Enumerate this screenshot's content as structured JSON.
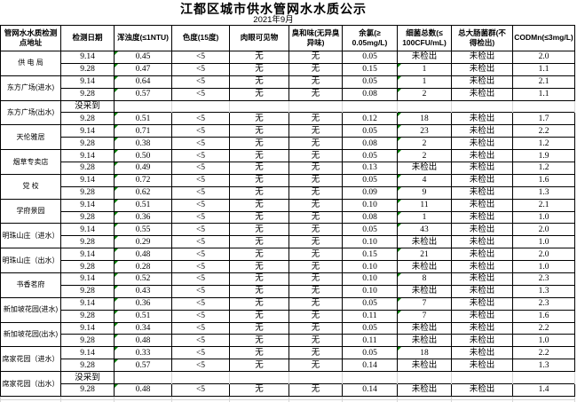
{
  "title": "江都区城市供水管网水水质公示",
  "subtitle": "2021年9月",
  "colors": {
    "border": "#000000",
    "gridline": "#d6d6d6",
    "triangle": "#008000",
    "background": "#ffffff",
    "text": "#000000"
  },
  "table": {
    "headers": [
      "管网水水质检测\n点地址",
      "检测日期",
      "浑浊度(≤1NTU)",
      "色度(15度)",
      "肉眼可见物",
      "臭和味(无异臭\n异味)",
      "余氯(≥\n0.05mg/L)",
      "细菌总数(≤\n100CFU/mL)",
      "总大肠菌群(不\n得检出)",
      "CODMn(≤3mg/L)"
    ],
    "not_sampled_label": "没采到",
    "sites": [
      {
        "name": "供 电 局",
        "rows": [
          {
            "date": "9.14",
            "turbidity": "0.45",
            "turbidity_flag": true,
            "chroma": "<5",
            "visible": "无",
            "odor": "无",
            "chlorine": "0.05",
            "bacteria": "未检出",
            "bacteria_flag": false,
            "coliform": "未检出",
            "codmn": "2.0"
          },
          {
            "date": "9.28",
            "turbidity": "0.47",
            "turbidity_flag": true,
            "chroma": "<5",
            "visible": "无",
            "odor": "无",
            "chlorine": "0.15",
            "bacteria": "1",
            "bacteria_flag": true,
            "coliform": "未检出",
            "codmn": "1.1"
          }
        ]
      },
      {
        "name": "东方广场(进水)",
        "rows": [
          {
            "date": "9.14",
            "turbidity": "0.64",
            "turbidity_flag": true,
            "chroma": "<5",
            "visible": "无",
            "odor": "无",
            "chlorine": "0.05",
            "bacteria": "1",
            "bacteria_flag": true,
            "coliform": "未检出",
            "codmn": "2.1"
          },
          {
            "date": "9.28",
            "turbidity": "0.57",
            "turbidity_flag": true,
            "chroma": "<5",
            "visible": "无",
            "odor": "无",
            "chlorine": "0.08",
            "bacteria": "2",
            "bacteria_flag": true,
            "coliform": "未检出",
            "codmn": "1.1"
          }
        ]
      },
      {
        "name": "东方广场(出水)",
        "rows": [
          {
            "date": "没采到",
            "not_sampled": true
          },
          {
            "date": "9.28",
            "turbidity": "0.51",
            "turbidity_flag": true,
            "chroma": "<5",
            "visible": "无",
            "odor": "无",
            "chlorine": "0.12",
            "bacteria": "18",
            "bacteria_flag": true,
            "coliform": "未检出",
            "codmn": "1.7"
          }
        ]
      },
      {
        "name": "天伦雅居",
        "rows": [
          {
            "date": "9.14",
            "turbidity": "0.71",
            "turbidity_flag": true,
            "chroma": "<5",
            "visible": "无",
            "odor": "无",
            "chlorine": "0.05",
            "bacteria": "23",
            "bacteria_flag": true,
            "coliform": "未检出",
            "codmn": "2.2"
          },
          {
            "date": "9.28",
            "turbidity": "0.38",
            "turbidity_flag": true,
            "chroma": "<5",
            "visible": "无",
            "odor": "无",
            "chlorine": "0.08",
            "bacteria": "2",
            "bacteria_flag": true,
            "coliform": "未检出",
            "codmn": "1.2"
          }
        ]
      },
      {
        "name": "烟草专卖店",
        "rows": [
          {
            "date": "9.14",
            "turbidity": "0.50",
            "turbidity_flag": true,
            "chroma": "<5",
            "visible": "无",
            "odor": "无",
            "chlorine": "0.05",
            "bacteria": "2",
            "bacteria_flag": true,
            "coliform": "未检出",
            "codmn": "1.9"
          },
          {
            "date": "9.28",
            "turbidity": "0.49",
            "turbidity_flag": true,
            "chroma": "<5",
            "visible": "无",
            "odor": "无",
            "chlorine": "0.13",
            "bacteria": "未检出",
            "bacteria_flag": false,
            "coliform": "未检出",
            "codmn": "1.2"
          }
        ]
      },
      {
        "name": "党  校",
        "rows": [
          {
            "date": "9.14",
            "turbidity": "0.72",
            "turbidity_flag": true,
            "chroma": "<5",
            "visible": "无",
            "odor": "无",
            "chlorine": "0.05",
            "bacteria": "4",
            "bacteria_flag": true,
            "coliform": "未检出",
            "codmn": "1.6"
          },
          {
            "date": "9.28",
            "turbidity": "0.62",
            "turbidity_flag": true,
            "chroma": "<5",
            "visible": "无",
            "odor": "无",
            "chlorine": "0.09",
            "bacteria": "9",
            "bacteria_flag": true,
            "coliform": "未检出",
            "codmn": "1.3"
          }
        ]
      },
      {
        "name": "学府景园",
        "rows": [
          {
            "date": "9.14",
            "turbidity": "0.51",
            "turbidity_flag": true,
            "chroma": "<5",
            "visible": "无",
            "odor": "无",
            "chlorine": "0.10",
            "bacteria": "11",
            "bacteria_flag": true,
            "coliform": "未检出",
            "codmn": "2.1"
          },
          {
            "date": "9.28",
            "turbidity": "0.36",
            "turbidity_flag": true,
            "chroma": "<5",
            "visible": "无",
            "odor": "无",
            "chlorine": "0.08",
            "bacteria": "1",
            "bacteria_flag": true,
            "coliform": "未检出",
            "codmn": "1.0"
          }
        ]
      },
      {
        "name": "明珠山庄（进水）",
        "rows": [
          {
            "date": "9.14",
            "turbidity": "0.55",
            "turbidity_flag": true,
            "chroma": "<5",
            "visible": "无",
            "odor": "无",
            "chlorine": "0.05",
            "bacteria": "43",
            "bacteria_flag": true,
            "coliform": "未检出",
            "codmn": "2.0"
          },
          {
            "date": "9.28",
            "turbidity": "0.29",
            "turbidity_flag": true,
            "chroma": "<5",
            "visible": "无",
            "odor": "无",
            "chlorine": "0.10",
            "bacteria": "未检出",
            "bacteria_flag": false,
            "coliform": "未检出",
            "codmn": "1.0"
          }
        ]
      },
      {
        "name": "明珠山庄（出水）",
        "rows": [
          {
            "date": "9.14",
            "turbidity": "0.48",
            "turbidity_flag": true,
            "chroma": "<5",
            "visible": "无",
            "odor": "无",
            "chlorine": "0.15",
            "bacteria": "21",
            "bacteria_flag": true,
            "coliform": "未检出",
            "codmn": "2.0"
          },
          {
            "date": "9.28",
            "turbidity": "0.28",
            "turbidity_flag": true,
            "chroma": "<5",
            "visible": "无",
            "odor": "无",
            "chlorine": "0.10",
            "bacteria": "未检出",
            "bacteria_flag": false,
            "coliform": "未检出",
            "codmn": "1.0"
          }
        ]
      },
      {
        "name": "书香茗府",
        "rows": [
          {
            "date": "9.14",
            "turbidity": "0.52",
            "turbidity_flag": true,
            "chroma": "<5",
            "visible": "无",
            "odor": "无",
            "chlorine": "0.10",
            "bacteria": "8",
            "bacteria_flag": true,
            "coliform": "未检出",
            "codmn": "2.3"
          },
          {
            "date": "9.28",
            "turbidity": "0.43",
            "turbidity_flag": true,
            "chroma": "<5",
            "visible": "无",
            "odor": "无",
            "chlorine": "0.10",
            "bacteria": "未检出",
            "bacteria_flag": false,
            "coliform": "未检出",
            "codmn": "1.3"
          }
        ]
      },
      {
        "name": "新加坡花园(进水)",
        "rows": [
          {
            "date": "9.14",
            "turbidity": "0.36",
            "turbidity_flag": true,
            "chroma": "<5",
            "visible": "无",
            "odor": "无",
            "chlorine": "0.05",
            "bacteria": "7",
            "bacteria_flag": true,
            "coliform": "未检出",
            "codmn": "2.3"
          },
          {
            "date": "9.28",
            "turbidity": "0.51",
            "turbidity_flag": true,
            "chroma": "<5",
            "visible": "无",
            "odor": "无",
            "chlorine": "0.11",
            "bacteria": "7",
            "bacteria_flag": true,
            "coliform": "未检出",
            "codmn": "1.6"
          }
        ]
      },
      {
        "name": "新加坡花园(出水)",
        "rows": [
          {
            "date": "9.14",
            "turbidity": "0.34",
            "turbidity_flag": true,
            "chroma": "<5",
            "visible": "无",
            "odor": "无",
            "chlorine": "0.05",
            "bacteria": "未检出",
            "bacteria_flag": false,
            "coliform": "未检出",
            "codmn": "2.2"
          },
          {
            "date": "9.28",
            "turbidity": "0.48",
            "turbidity_flag": true,
            "chroma": "<5",
            "visible": "无",
            "odor": "无",
            "chlorine": "0.11",
            "bacteria": "未检出",
            "bacteria_flag": false,
            "coliform": "未检出",
            "codmn": "1.0"
          }
        ]
      },
      {
        "name": "席家花园（进水）",
        "rows": [
          {
            "date": "9.14",
            "turbidity": "0.33",
            "turbidity_flag": true,
            "chroma": "<5",
            "visible": "无",
            "odor": "无",
            "chlorine": "0.05",
            "bacteria": "18",
            "bacteria_flag": true,
            "coliform": "未检出",
            "codmn": "2.2"
          },
          {
            "date": "9.28",
            "turbidity": "0.57",
            "turbidity_flag": true,
            "chroma": "<5",
            "visible": "无",
            "odor": "无",
            "chlorine": "0.14",
            "bacteria": "未检出",
            "bacteria_flag": false,
            "coliform": "未检出",
            "codmn": "1.3"
          }
        ]
      },
      {
        "name": "席家花园（出水）",
        "rows": [
          {
            "date": "没采到",
            "not_sampled": true
          },
          {
            "date": "9.28",
            "turbidity": "0.48",
            "turbidity_flag": true,
            "chroma": "<5",
            "visible": "无",
            "odor": "无",
            "chlorine": "0.14",
            "bacteria": "未检出",
            "bacteria_flag": false,
            "coliform": "未检出",
            "codmn": "1.4"
          }
        ]
      }
    ]
  }
}
